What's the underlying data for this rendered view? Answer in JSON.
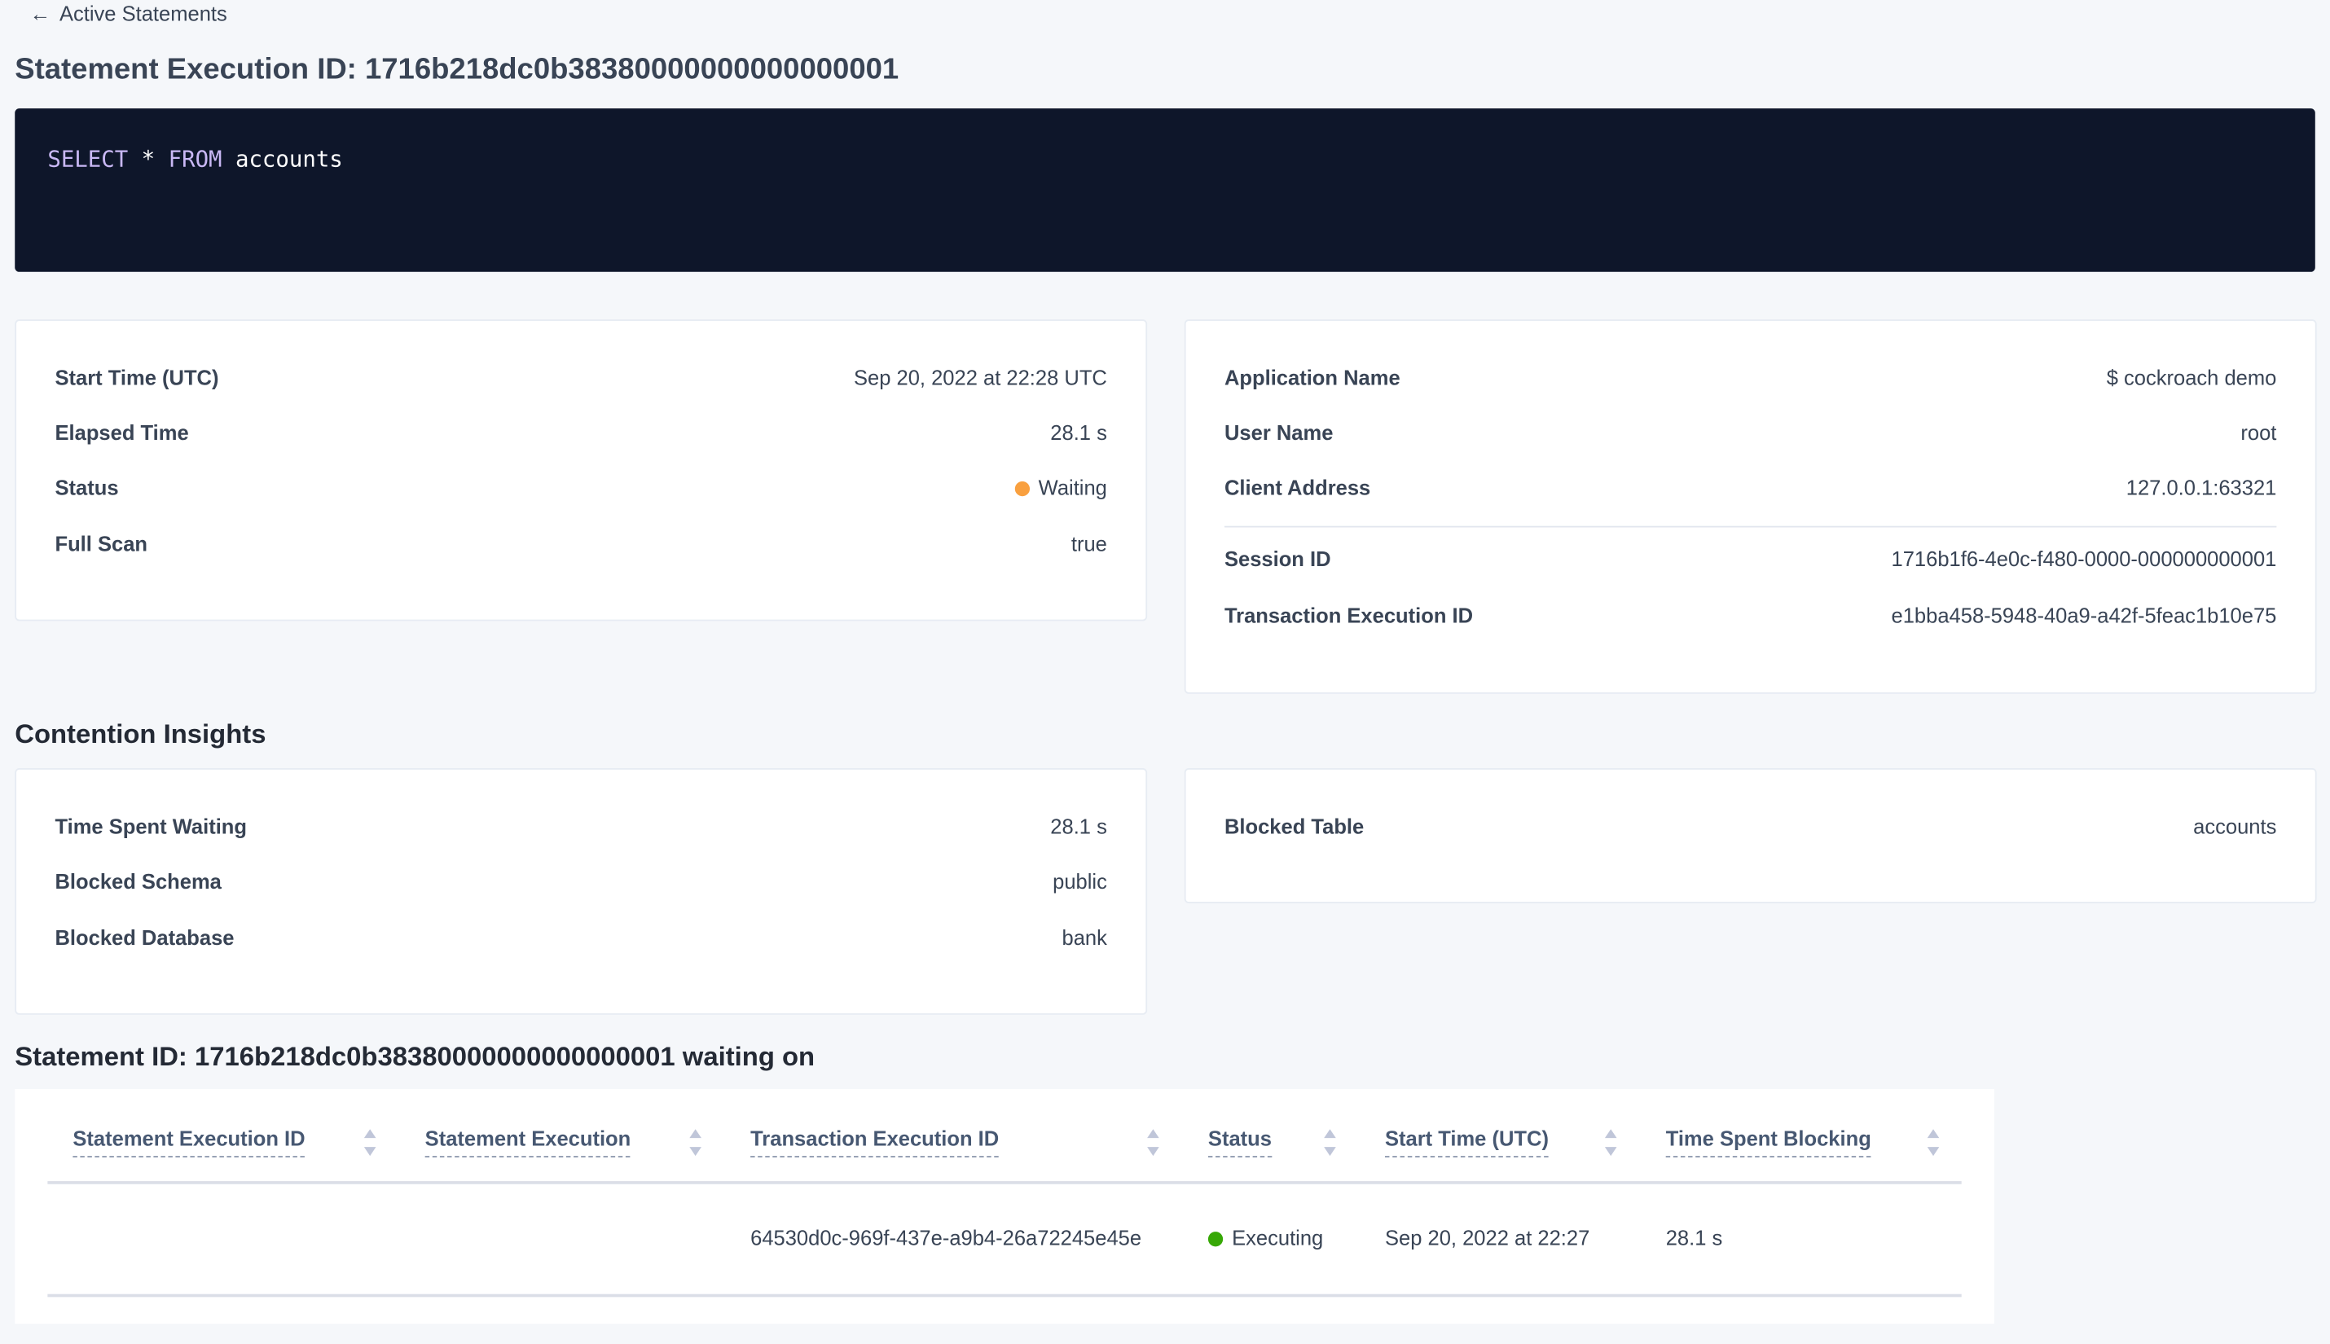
{
  "back_link": {
    "label": "Active Statements",
    "icon": "arrow-left-icon"
  },
  "title": "Statement Execution ID: 1716b218dc0b38380000000000000001",
  "sql": {
    "keyword1": "SELECT",
    "op": "*",
    "keyword2": "FROM",
    "table": "accounts"
  },
  "details_left": [
    {
      "label": "Start Time (UTC)",
      "value": "Sep 20, 2022 at 22:28 UTC"
    },
    {
      "label": "Elapsed Time",
      "value": "28.1 s"
    },
    {
      "label": "Status",
      "value": "Waiting",
      "status_color": "#f9a03f"
    },
    {
      "label": "Full Scan",
      "value": "true"
    }
  ],
  "details_right": [
    {
      "label": "Application Name",
      "value": "$ cockroach demo"
    },
    {
      "label": "User Name",
      "value": "root"
    },
    {
      "label": "Client Address",
      "value": "127.0.0.1:63321"
    },
    {
      "label": "Session ID",
      "value": "1716b1f6-4e0c-f480-0000-000000000001"
    },
    {
      "label": "Transaction Execution ID",
      "value": "e1bba458-5948-40a9-a42f-5feac1b10e75"
    }
  ],
  "contention": {
    "heading": "Contention Insights",
    "left": [
      {
        "label": "Time Spent Waiting",
        "value": "28.1 s"
      },
      {
        "label": "Blocked Schema",
        "value": "public"
      },
      {
        "label": "Blocked Database",
        "value": "bank"
      }
    ],
    "right": [
      {
        "label": "Blocked Table",
        "value": "accounts"
      }
    ]
  },
  "waiting_heading": "Statement ID: 1716b218dc0b38380000000000000001 waiting on",
  "table": {
    "columns": [
      "Statement Execution ID",
      "Statement Execution",
      "Transaction Execution ID",
      "Status",
      "Start Time (UTC)",
      "Time Spent Blocking"
    ],
    "rows": [
      {
        "statement_execution_id": "",
        "statement_execution": "",
        "transaction_execution_id": "64530d0c-969f-437e-a9b4-26a72245e45e",
        "status": "Executing",
        "status_color": "#37a806",
        "start_time": "Sep 20, 2022 at 22:27",
        "time_spent_blocking": "28.1 s"
      }
    ]
  },
  "colors": {
    "link": "#0055ff",
    "code_bg": "#0e162a",
    "keyword": "#c9b8f5"
  }
}
